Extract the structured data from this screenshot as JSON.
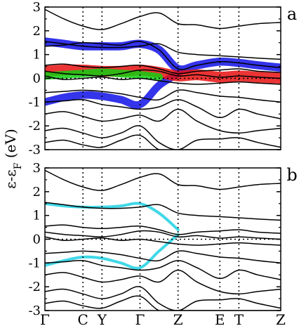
{
  "chart_data": [
    {
      "type": "line",
      "panel_label": "a",
      "ylabel": "ε-ε_F (eV)",
      "ylim": [
        -3,
        3
      ],
      "y_ticks": [
        "-3",
        "-2",
        "-1",
        "0",
        "1",
        "2",
        "3"
      ],
      "k_points": [
        "Γ",
        "C",
        "Y",
        "Γ",
        "Z",
        "E",
        "T",
        "Z"
      ],
      "k_positions": [
        0,
        1,
        1.5,
        2.5,
        3.5,
        4.6,
        5.1,
        6.2
      ],
      "kpath_labels_shown": false,
      "fermi_line": true,
      "series": [
        {
          "color": "#000000",
          "x": [
            0,
            0.5,
            1,
            1.5,
            2,
            2.5,
            3,
            3.5,
            4,
            4.6,
            5.1,
            5.6,
            6.2
          ],
          "y": [
            2.9,
            2.5,
            2.2,
            2.05,
            2.3,
            2.6,
            2.75,
            2.3,
            2.25,
            2.1,
            2.2,
            2.3,
            2.35
          ]
        },
        {
          "color": "#000000",
          "x": [
            0,
            0.5,
            1,
            1.5,
            2,
            2.5,
            3,
            3.5,
            4,
            4.6,
            5.1,
            5.6,
            6.2
          ],
          "y": [
            1.55,
            1.45,
            1.35,
            1.3,
            1.3,
            1.35,
            1.45,
            1.1,
            1.0,
            0.95,
            0.9,
            0.85,
            0.8
          ]
        },
        {
          "color": "#000000",
          "x": [
            0,
            0.5,
            1,
            1.5,
            2,
            2.5,
            3,
            3.5,
            4,
            4.6,
            5.1,
            5.6,
            6.2
          ],
          "y": [
            1.35,
            1.4,
            1.5,
            1.45,
            1.4,
            1.55,
            1.2,
            0.4,
            0.55,
            0.7,
            0.65,
            0.55,
            0.45
          ]
        },
        {
          "color": "#000000",
          "x": [
            0,
            0.5,
            1,
            1.5,
            2,
            2.5,
            3,
            3.5,
            4,
            4.6,
            5.1,
            5.6,
            6.2
          ],
          "y": [
            0.55,
            0.6,
            0.5,
            0.45,
            0.5,
            0.55,
            0.4,
            0.2,
            0.3,
            0.35,
            0.4,
            0.3,
            0.25
          ]
        },
        {
          "color": "#000000",
          "x": [
            0,
            0.5,
            1,
            1.5,
            2,
            2.5,
            3,
            3.5,
            4,
            4.6,
            5.1,
            5.6,
            6.2
          ],
          "y": [
            0.3,
            0.2,
            0.15,
            0.1,
            0.2,
            0.35,
            0.3,
            0.1,
            0.15,
            0.05,
            0.1,
            0.05,
            0.0
          ]
        },
        {
          "color": "#000000",
          "x": [
            0,
            0.5,
            1,
            1.5,
            2,
            2.5,
            3,
            3.5,
            4,
            4.6,
            5.1,
            5.6,
            6.2
          ],
          "y": [
            0.1,
            -0.05,
            0.0,
            0.05,
            -0.05,
            0.0,
            -0.1,
            -0.2,
            -0.25,
            -0.2,
            -0.15,
            -0.2,
            -0.25
          ]
        },
        {
          "color": "#000000",
          "x": [
            0,
            0.5,
            1,
            1.5,
            2,
            2.5,
            3,
            3.5,
            4,
            4.6,
            5.1,
            5.6,
            6.2
          ],
          "y": [
            -0.6,
            -0.55,
            -0.5,
            -0.55,
            -0.65,
            -0.8,
            -0.9,
            -0.5,
            -0.6,
            -0.75,
            -0.8,
            -0.9,
            -1.0
          ]
        },
        {
          "color": "#000000",
          "x": [
            0,
            0.5,
            1,
            1.5,
            2,
            2.5,
            3,
            3.5,
            4,
            4.6,
            5.1,
            5.6,
            6.2
          ],
          "y": [
            -1.0,
            -0.95,
            -0.9,
            -1.1,
            -1.2,
            -1.3,
            -1.2,
            -0.9,
            -1.2,
            -1.65,
            -1.3,
            -1.5,
            -1.7
          ]
        },
        {
          "color": "#000000",
          "x": [
            0,
            0.5,
            1,
            1.5,
            2,
            2.5,
            3,
            3.5,
            4,
            4.6,
            5.1,
            5.6,
            6.2
          ],
          "y": [
            -1.5,
            -1.4,
            -1.6,
            -1.8,
            -1.7,
            -1.55,
            -1.8,
            -1.3,
            -1.8,
            -2.2,
            -2.3,
            -2.2,
            -2.1
          ]
        },
        {
          "color": "#000000",
          "x": [
            0,
            0.5,
            1,
            1.5,
            2,
            2.5,
            3,
            3.5,
            4,
            4.6,
            5.1,
            5.6,
            6.2
          ],
          "y": [
            -2.2,
            -2.1,
            -2.3,
            -2.5,
            -2.3,
            -2.0,
            -2.7,
            -3.0,
            -2.6,
            -2.55,
            -2.5,
            -2.7,
            -2.9
          ]
        },
        {
          "color": "#000000",
          "x": [
            0,
            0.5,
            1,
            1.5,
            2,
            2.5,
            3,
            3.5,
            4,
            4.6,
            5.1,
            5.6,
            6.2
          ],
          "y": [
            -2.7,
            -2.6,
            -2.8,
            -2.9,
            -2.6,
            -2.4,
            -3.0,
            -3.0,
            -3.0,
            -3.0,
            -3.0,
            -3.0,
            -3.0
          ]
        }
      ],
      "projections": [
        {
          "color": "#1010e8",
          "x": [
            0,
            0.5,
            1,
            1.5,
            2,
            2.5,
            3,
            3.5,
            4,
            4.6,
            5.1,
            5.6,
            6.2
          ],
          "y": [
            1.55,
            1.45,
            1.35,
            1.35,
            1.35,
            1.45,
            1.2,
            0.4,
            0.55,
            0.7,
            0.65,
            0.55,
            0.45
          ],
          "w": [
            14,
            12,
            10,
            10,
            10,
            12,
            14,
            10,
            12,
            14,
            12,
            10,
            10
          ]
        },
        {
          "color": "#1010e8",
          "x": [
            0,
            0.5,
            1,
            1.5,
            2,
            2.5,
            3,
            3.5
          ],
          "y": [
            -1.0,
            -0.8,
            -0.7,
            -0.75,
            -0.9,
            -1.1,
            -0.3,
            0.2
          ],
          "w": [
            10,
            12,
            12,
            10,
            10,
            12,
            12,
            8
          ]
        },
        {
          "color": "#e81010",
          "x": [
            0,
            0.5,
            1,
            1.5,
            2,
            2.5,
            3,
            3.5,
            4,
            4.6,
            5.1,
            5.6,
            6.2
          ],
          "y": [
            0.3,
            0.35,
            0.35,
            0.3,
            0.3,
            0.35,
            0.25,
            0.1,
            0.15,
            0.05,
            0.1,
            0.05,
            0.0
          ],
          "w": [
            14,
            16,
            18,
            14,
            12,
            16,
            12,
            10,
            16,
            20,
            18,
            18,
            16
          ]
        },
        {
          "color": "#10d010",
          "x": [
            0,
            0.5,
            1,
            1.5,
            2,
            2.5,
            3
          ],
          "y": [
            0.1,
            0.15,
            0.2,
            0.25,
            0.2,
            0.15,
            0.05
          ],
          "w": [
            10,
            12,
            14,
            12,
            10,
            10,
            8
          ]
        }
      ]
    },
    {
      "type": "line",
      "panel_label": "b",
      "ylim": [
        -3,
        3
      ],
      "y_ticks": [
        "-3",
        "-2",
        "-1",
        "0",
        "1",
        "2",
        "3"
      ],
      "k_points": [
        "Γ",
        "C",
        "Y",
        "Γ",
        "Z",
        "E",
        "T",
        "Z"
      ],
      "k_positions": [
        0,
        1,
        1.5,
        2.5,
        3.5,
        4.6,
        5.1,
        6.2
      ],
      "kpath_labels_shown": true,
      "fermi_line": true,
      "series": [
        {
          "color": "#000000",
          "x": [
            0,
            0.5,
            1,
            1.5,
            2,
            2.5,
            3,
            3.5,
            4,
            4.6,
            5.1,
            5.6,
            6.2
          ],
          "y": [
            2.9,
            2.5,
            2.2,
            2.05,
            2.3,
            2.6,
            2.75,
            2.3,
            2.25,
            2.1,
            2.2,
            2.3,
            2.35
          ]
        },
        {
          "color": "#000000",
          "x": [
            0,
            0.5,
            1,
            1.5,
            2,
            2.5,
            3,
            3.5,
            4,
            4.6,
            5.1,
            5.6,
            6.2
          ],
          "y": [
            1.55,
            1.45,
            1.35,
            1.3,
            1.3,
            1.35,
            1.45,
            1.1,
            1.0,
            0.95,
            0.9,
            0.85,
            0.8
          ]
        },
        {
          "color": "#000000",
          "x": [
            0,
            0.5,
            1,
            1.5,
            2,
            2.5,
            3,
            3.5,
            4,
            4.6,
            5.1,
            5.6,
            6.2
          ],
          "y": [
            0.55,
            0.6,
            0.5,
            0.45,
            0.5,
            0.55,
            0.4,
            0.2,
            0.3,
            0.35,
            0.4,
            0.3,
            0.25
          ]
        },
        {
          "color": "#000000",
          "x": [
            0,
            0.5,
            1,
            1.5,
            2,
            2.5,
            3,
            3.5,
            4,
            4.6,
            5.1,
            5.6,
            6.2
          ],
          "y": [
            0.3,
            0.2,
            0.15,
            0.1,
            0.2,
            0.35,
            0.3,
            0.1,
            0.15,
            0.05,
            0.1,
            0.05,
            0.0
          ]
        },
        {
          "color": "#000000",
          "x": [
            0,
            0.5,
            1,
            1.5,
            2,
            2.5,
            3,
            3.5,
            4,
            4.6,
            5.1,
            5.6,
            6.2
          ],
          "y": [
            0.1,
            -0.05,
            0.0,
            0.05,
            -0.05,
            0.0,
            -0.1,
            -0.2,
            -0.25,
            -0.2,
            -0.15,
            -0.2,
            -0.25
          ]
        },
        {
          "color": "#000000",
          "x": [
            0,
            0.5,
            1,
            1.5,
            2,
            2.5,
            3,
            3.5,
            4,
            4.6,
            5.1,
            5.6,
            6.2
          ],
          "y": [
            -0.6,
            -0.55,
            -0.5,
            -0.55,
            -0.65,
            -0.8,
            -0.9,
            -0.5,
            -0.6,
            -0.75,
            -0.8,
            -0.9,
            -1.0
          ]
        },
        {
          "color": "#000000",
          "x": [
            0,
            0.5,
            1,
            1.5,
            2,
            2.5,
            3,
            3.5,
            4,
            4.6,
            5.1,
            5.6,
            6.2
          ],
          "y": [
            -1.0,
            -0.95,
            -0.9,
            -1.1,
            -1.2,
            -1.3,
            -1.2,
            -0.9,
            -1.2,
            -1.65,
            -1.3,
            -1.5,
            -1.7
          ]
        },
        {
          "color": "#000000",
          "x": [
            0,
            0.5,
            1,
            1.5,
            2,
            2.5,
            3,
            3.5,
            4,
            4.6,
            5.1,
            5.6,
            6.2
          ],
          "y": [
            -1.5,
            -1.4,
            -1.6,
            -1.8,
            -1.7,
            -1.55,
            -1.8,
            -1.3,
            -1.8,
            -2.2,
            -2.3,
            -2.2,
            -2.1
          ]
        },
        {
          "color": "#000000",
          "x": [
            0,
            0.5,
            1,
            1.5,
            2,
            2.5,
            3,
            3.5,
            4,
            4.6,
            5.1,
            5.6,
            6.2
          ],
          "y": [
            -2.2,
            -2.1,
            -2.3,
            -2.5,
            -2.3,
            -2.0,
            -2.7,
            -3.0,
            -2.6,
            -2.55,
            -2.5,
            -2.7,
            -2.9
          ]
        },
        {
          "color": "#000000",
          "x": [
            0,
            0.5,
            1,
            1.5,
            2,
            2.5,
            3,
            3.5,
            4,
            4.6,
            5.1,
            5.6,
            6.2
          ],
          "y": [
            -2.7,
            -2.6,
            -2.8,
            -2.9,
            -2.6,
            -2.4,
            -3.0,
            -3.0,
            -3.0,
            -3.0,
            -3.0,
            -3.0,
            -3.0
          ]
        }
      ],
      "highlight": [
        {
          "color": "#40d8e8",
          "x": [
            0,
            0.5,
            1,
            1.5,
            2,
            2.5,
            3,
            3.5
          ],
          "y": [
            1.5,
            1.4,
            1.35,
            1.35,
            1.4,
            1.5,
            1.1,
            0.4
          ]
        },
        {
          "color": "#40d8e8",
          "x": [
            0,
            0.5,
            1,
            1.5,
            2,
            2.5,
            3,
            3.5
          ],
          "y": [
            -1.1,
            -0.9,
            -0.75,
            -0.8,
            -1.0,
            -1.2,
            -0.5,
            0.2
          ]
        }
      ]
    }
  ]
}
